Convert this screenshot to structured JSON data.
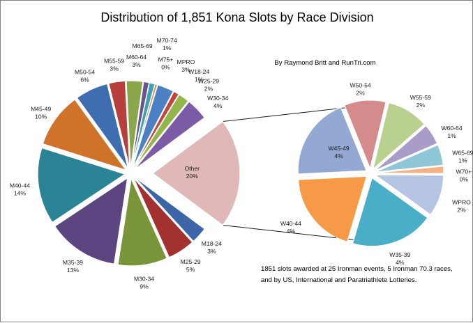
{
  "chart_data": {
    "type": "pie",
    "title": "Distribution of 1,851 Kona Slots by Race Division",
    "byline": "By Raymond Britt and RunTri.com",
    "footnote": [
      "1851 slots awarded at 25 Ironman events, 5 Ironman 70.3 races,",
      "and by US, International and Paratriathlete Lotteries."
    ],
    "main_pie": {
      "slices": [
        {
          "label": "M18-24",
          "percent": "3%",
          "value": 3,
          "color": "#3c66a8"
        },
        {
          "label": "M25-29",
          "percent": "5%",
          "value": 5,
          "color": "#a3312f"
        },
        {
          "label": "M30-34",
          "percent": "9%",
          "value": 9,
          "color": "#7a9539"
        },
        {
          "label": "M35-39",
          "percent": "13%",
          "value": 13,
          "color": "#5c4580"
        },
        {
          "label": "M40-44",
          "percent": "14%",
          "value": 14,
          "color": "#2b8396"
        },
        {
          "label": "M45-49",
          "percent": "10%",
          "value": 10,
          "color": "#d0732a"
        },
        {
          "label": "M50-54",
          "percent": "6%",
          "value": 6,
          "color": "#3f6eb0"
        },
        {
          "label": "M55-59",
          "percent": "3%",
          "value": 3,
          "color": "#b8403c"
        },
        {
          "label": "M60-64",
          "percent": "3%",
          "value": 3,
          "color": "#8aa84b"
        },
        {
          "label": "M65-69",
          "percent": "",
          "value": 1,
          "color": "#6a528f"
        },
        {
          "label": "M70-74",
          "percent": "1%",
          "value": 1,
          "color": "#3ba0ba"
        },
        {
          "label": "M75+",
          "percent": "0%",
          "value": 0.4,
          "color": "#e38834"
        },
        {
          "label": "MPRO",
          "percent": "3%",
          "value": 3,
          "color": "#4b80c4"
        },
        {
          "label": "W18-24",
          "percent": "1%",
          "value": 1,
          "color": "#c2443f"
        },
        {
          "label": "W25-29",
          "percent": "2%",
          "value": 2,
          "color": "#92b54c"
        },
        {
          "label": "W30-34",
          "percent": "4%",
          "value": 4,
          "color": "#7b5ba5"
        },
        {
          "label": "Other",
          "percent": "20%",
          "value": 20,
          "color": "#e0b8b8"
        }
      ]
    },
    "other_pie": {
      "slices": [
        {
          "label": "W50-54",
          "percent": "2%",
          "value": 2,
          "color": "#d58b8b"
        },
        {
          "label": "W55-59",
          "percent": "2%",
          "value": 2,
          "color": "#b9d08f"
        },
        {
          "label": "W60-64",
          "percent": "1%",
          "value": 1,
          "color": "#a99cc9"
        },
        {
          "label": "W65-69",
          "percent": "1%",
          "value": 1,
          "color": "#8fc7d6"
        },
        {
          "label": "W70+",
          "percent": "0%",
          "value": 0.35,
          "color": "#f3b285"
        },
        {
          "label": "WPRO",
          "percent": "2%",
          "value": 2,
          "color": "#b5c4e2"
        },
        {
          "label": "W35-39",
          "percent": "4%",
          "value": 4,
          "color": "#4aaec9"
        },
        {
          "label": "W40-44",
          "percent": "4%",
          "value": 4,
          "color": "#f79a47"
        },
        {
          "label": "W45-49",
          "percent": "4%",
          "value": 4,
          "color": "#93a8d3"
        }
      ]
    }
  }
}
